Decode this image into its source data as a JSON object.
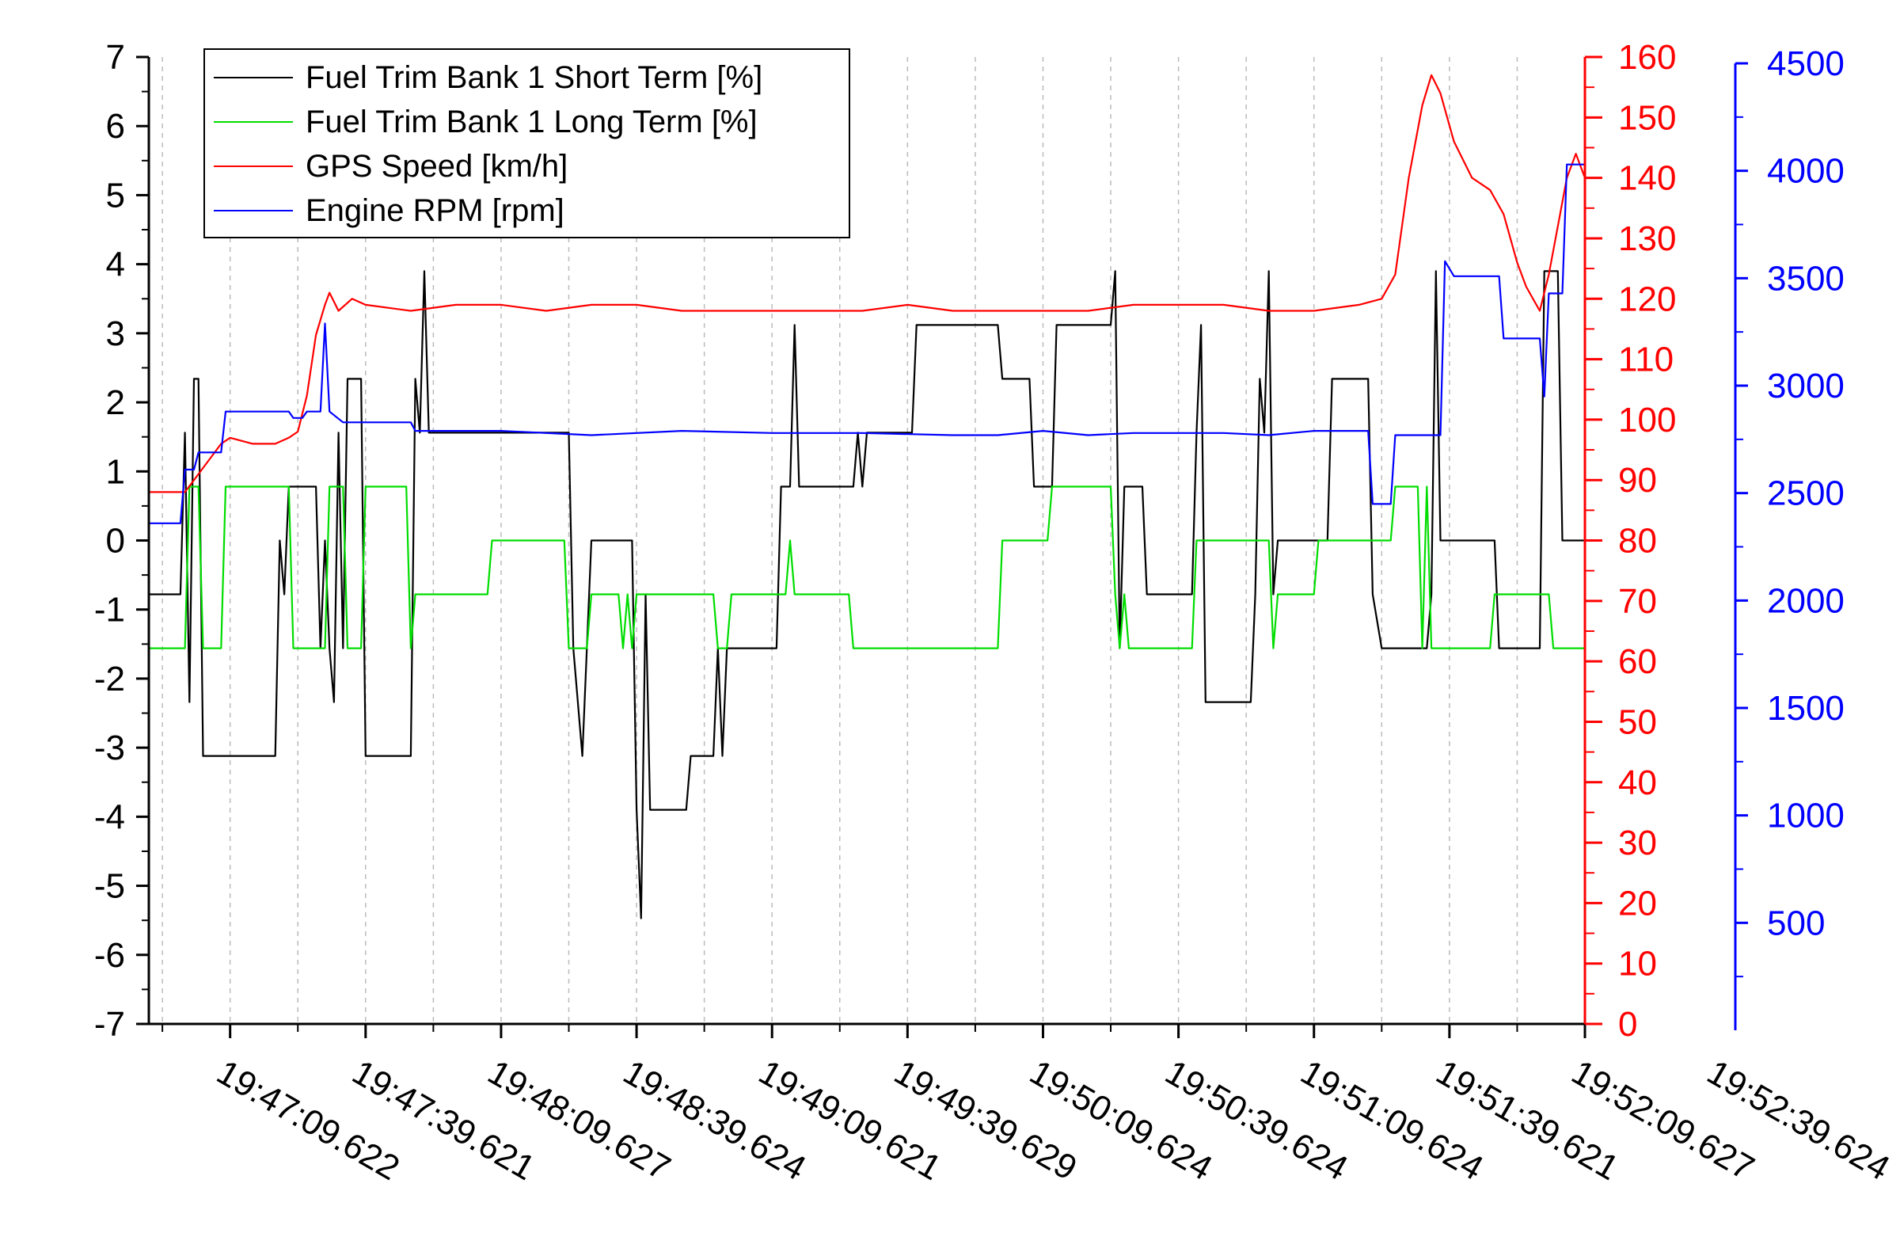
{
  "chart_data": {
    "type": "line",
    "x_unit": "time",
    "x_ticks": [
      "19:47:09.622",
      "19:47:39.621",
      "19:48:09.627",
      "19:48:39.624",
      "19:49:09.621",
      "19:49:39.629",
      "19:50:09.624",
      "19:50:39.624",
      "19:51:09.624",
      "19:51:39.621",
      "19:52:09.627",
      "19:52:39.624"
    ],
    "x_range_seconds_from_first_tick": [
      -18,
      300
    ],
    "grid": "vertical dashed minor",
    "legend_position": "top-left",
    "axes": {
      "left": {
        "ylim": [
          -7,
          7
        ],
        "ticks": [
          7,
          6,
          5,
          4,
          3,
          2,
          1,
          0,
          -1,
          -2,
          -3,
          -4,
          -5,
          -6,
          -7
        ],
        "color": "#000000"
      },
      "right_red": {
        "ylim": [
          0,
          160
        ],
        "ticks": [
          160,
          150,
          140,
          130,
          120,
          110,
          100,
          90,
          80,
          70,
          60,
          50,
          40,
          30,
          20,
          10,
          0
        ],
        "color": "#ff0000"
      },
      "right_blue": {
        "ylim": [
          0,
          4500
        ],
        "ticks": [
          4500,
          4000,
          3500,
          3000,
          2500,
          2000,
          1500,
          1000,
          500
        ],
        "color": "#0000ff"
      }
    },
    "series": [
      {
        "name": "Fuel Trim Bank 1 Short Term [%]",
        "color": "#000000",
        "axis": "left",
        "points": [
          [
            -18,
            -0.78
          ],
          [
            -11,
            -0.78
          ],
          [
            -10,
            1.56
          ],
          [
            -9,
            -2.34
          ],
          [
            -8,
            2.34
          ],
          [
            -7,
            2.34
          ],
          [
            -6,
            -3.12
          ],
          [
            10,
            -3.12
          ],
          [
            11,
            0
          ],
          [
            12,
            -0.78
          ],
          [
            13,
            0.78
          ],
          [
            19,
            0.78
          ],
          [
            20,
            -1.56
          ],
          [
            21,
            0
          ],
          [
            22,
            -1.56
          ],
          [
            23,
            -2.34
          ],
          [
            24,
            1.56
          ],
          [
            25,
            -1.56
          ],
          [
            26,
            2.34
          ],
          [
            29,
            2.34
          ],
          [
            30,
            -3.12
          ],
          [
            40,
            -3.12
          ],
          [
            41,
            2.34
          ],
          [
            42,
            1.56
          ],
          [
            43,
            3.9
          ],
          [
            44,
            1.56
          ],
          [
            75,
            1.56
          ],
          [
            76,
            -1.56
          ],
          [
            78,
            -3.12
          ],
          [
            79,
            -1.56
          ],
          [
            80,
            0
          ],
          [
            89,
            0
          ],
          [
            90,
            -3.9
          ],
          [
            91,
            -5.47
          ],
          [
            92,
            -0.78
          ],
          [
            93,
            -3.9
          ],
          [
            101,
            -3.9
          ],
          [
            102,
            -3.12
          ],
          [
            107,
            -3.12
          ],
          [
            108,
            -1.56
          ],
          [
            109,
            -3.12
          ],
          [
            110,
            -1.56
          ],
          [
            121,
            -1.56
          ],
          [
            122,
            0.78
          ],
          [
            124,
            0.78
          ],
          [
            125,
            3.12
          ],
          [
            126,
            0.78
          ],
          [
            138,
            0.78
          ],
          [
            139,
            1.56
          ],
          [
            140,
            0.78
          ],
          [
            141,
            1.56
          ],
          [
            151,
            1.56
          ],
          [
            152,
            3.12
          ],
          [
            170,
            3.12
          ],
          [
            171,
            2.34
          ],
          [
            177,
            2.34
          ],
          [
            178,
            0.78
          ],
          [
            182,
            0.78
          ],
          [
            183,
            3.12
          ],
          [
            195,
            3.12
          ],
          [
            196,
            3.9
          ],
          [
            197,
            -1.56
          ],
          [
            198,
            0.78
          ],
          [
            202,
            0.78
          ],
          [
            203,
            -0.78
          ],
          [
            213,
            -0.78
          ],
          [
            214,
            1.56
          ],
          [
            215,
            3.12
          ],
          [
            216,
            -2.34
          ],
          [
            226,
            -2.34
          ],
          [
            227,
            -0.78
          ],
          [
            228,
            2.34
          ],
          [
            229,
            1.56
          ],
          [
            230,
            3.9
          ],
          [
            231,
            -0.78
          ],
          [
            232,
            0
          ],
          [
            243,
            0
          ],
          [
            244,
            2.34
          ],
          [
            252,
            2.34
          ],
          [
            253,
            -0.78
          ],
          [
            255,
            -1.56
          ],
          [
            265,
            -1.56
          ],
          [
            266,
            -0.78
          ],
          [
            267,
            3.9
          ],
          [
            268,
            0
          ],
          [
            280,
            0
          ],
          [
            281,
            -1.56
          ],
          [
            290,
            -1.56
          ],
          [
            291,
            3.9
          ],
          [
            294,
            3.9
          ],
          [
            295,
            0
          ],
          [
            300,
            0
          ]
        ]
      },
      {
        "name": "Fuel Trim Bank 1 Long Term [%]",
        "color": "#00dd00",
        "axis": "left",
        "points": [
          [
            -18,
            -1.56
          ],
          [
            -10,
            -1.56
          ],
          [
            -9,
            0.78
          ],
          [
            -7,
            0.78
          ],
          [
            -6,
            -1.56
          ],
          [
            -2,
            -1.56
          ],
          [
            -1,
            0.78
          ],
          [
            13,
            0.78
          ],
          [
            14,
            -1.56
          ],
          [
            21,
            -1.56
          ],
          [
            22,
            0.78
          ],
          [
            25,
            0.78
          ],
          [
            26,
            -1.56
          ],
          [
            29,
            -1.56
          ],
          [
            30,
            0.78
          ],
          [
            39,
            0.78
          ],
          [
            40,
            -1.56
          ],
          [
            41,
            -0.78
          ],
          [
            57,
            -0.78
          ],
          [
            58,
            0
          ],
          [
            74,
            0
          ],
          [
            75,
            -1.56
          ],
          [
            79,
            -1.56
          ],
          [
            80,
            -0.78
          ],
          [
            86,
            -0.78
          ],
          [
            87,
            -1.56
          ],
          [
            88,
            -0.78
          ],
          [
            89,
            -1.56
          ],
          [
            90,
            -0.78
          ],
          [
            107,
            -0.78
          ],
          [
            108,
            -1.56
          ],
          [
            110,
            -1.56
          ],
          [
            111,
            -0.78
          ],
          [
            123,
            -0.78
          ],
          [
            124,
            0
          ],
          [
            125,
            -0.78
          ],
          [
            137,
            -0.78
          ],
          [
            138,
            -1.56
          ],
          [
            170,
            -1.56
          ],
          [
            171,
            0
          ],
          [
            181,
            0
          ],
          [
            182,
            0.78
          ],
          [
            195,
            0.78
          ],
          [
            196,
            -0.78
          ],
          [
            197,
            -1.56
          ],
          [
            198,
            -0.78
          ],
          [
            199,
            -1.56
          ],
          [
            213,
            -1.56
          ],
          [
            214,
            0
          ],
          [
            230,
            0
          ],
          [
            231,
            -1.56
          ],
          [
            232,
            -0.78
          ],
          [
            240,
            -0.78
          ],
          [
            241,
            0
          ],
          [
            257,
            0
          ],
          [
            258,
            0.78
          ],
          [
            263,
            0.78
          ],
          [
            264,
            -1.56
          ],
          [
            265,
            0.78
          ],
          [
            266,
            -1.56
          ],
          [
            279,
            -1.56
          ],
          [
            280,
            -0.78
          ],
          [
            292,
            -0.78
          ],
          [
            293,
            -1.56
          ],
          [
            300,
            -1.56
          ]
        ]
      },
      {
        "name": "GPS Speed [km/h]",
        "color": "#ff0000",
        "axis": "right_red",
        "points": [
          [
            -18,
            88
          ],
          [
            -10,
            88
          ],
          [
            -8,
            90
          ],
          [
            -6,
            92
          ],
          [
            -2,
            96
          ],
          [
            0,
            97
          ],
          [
            5,
            96
          ],
          [
            10,
            96
          ],
          [
            13,
            97
          ],
          [
            15,
            98
          ],
          [
            17,
            104
          ],
          [
            19,
            114
          ],
          [
            21,
            119
          ],
          [
            22,
            121
          ],
          [
            24,
            118
          ],
          [
            27,
            120
          ],
          [
            30,
            119
          ],
          [
            40,
            118
          ],
          [
            50,
            119
          ],
          [
            60,
            119
          ],
          [
            70,
            118
          ],
          [
            80,
            119
          ],
          [
            90,
            119
          ],
          [
            100,
            118
          ],
          [
            110,
            118
          ],
          [
            120,
            118
          ],
          [
            130,
            118
          ],
          [
            140,
            118
          ],
          [
            150,
            119
          ],
          [
            160,
            118
          ],
          [
            170,
            118
          ],
          [
            180,
            118
          ],
          [
            190,
            118
          ],
          [
            200,
            119
          ],
          [
            210,
            119
          ],
          [
            220,
            119
          ],
          [
            230,
            118
          ],
          [
            240,
            118
          ],
          [
            250,
            119
          ],
          [
            255,
            120
          ],
          [
            258,
            124
          ],
          [
            261,
            140
          ],
          [
            264,
            152
          ],
          [
            266,
            157
          ],
          [
            268,
            154
          ],
          [
            271,
            146
          ],
          [
            275,
            140
          ],
          [
            279,
            138
          ],
          [
            282,
            134
          ],
          [
            285,
            126
          ],
          [
            287,
            122
          ],
          [
            290,
            118
          ],
          [
            292,
            124
          ],
          [
            294,
            132
          ],
          [
            296,
            140
          ],
          [
            298,
            144
          ],
          [
            300,
            140
          ]
        ]
      },
      {
        "name": "Engine RPM [rpm]",
        "color": "#0000ff",
        "axis": "right_blue",
        "points": [
          [
            -18,
            2330
          ],
          [
            -11,
            2330
          ],
          [
            -10,
            2580
          ],
          [
            -8,
            2580
          ],
          [
            -7,
            2660
          ],
          [
            -2,
            2660
          ],
          [
            -1,
            2850
          ],
          [
            13,
            2850
          ],
          [
            14,
            2820
          ],
          [
            16,
            2820
          ],
          [
            17,
            2850
          ],
          [
            20,
            2850
          ],
          [
            21,
            3260
          ],
          [
            22,
            2850
          ],
          [
            25,
            2800
          ],
          [
            40,
            2800
          ],
          [
            41,
            2760
          ],
          [
            60,
            2760
          ],
          [
            80,
            2740
          ],
          [
            100,
            2760
          ],
          [
            120,
            2750
          ],
          [
            140,
            2750
          ],
          [
            160,
            2740
          ],
          [
            170,
            2740
          ],
          [
            180,
            2760
          ],
          [
            190,
            2740
          ],
          [
            200,
            2750
          ],
          [
            220,
            2750
          ],
          [
            230,
            2740
          ],
          [
            240,
            2760
          ],
          [
            252,
            2760
          ],
          [
            253,
            2420
          ],
          [
            257,
            2420
          ],
          [
            258,
            2740
          ],
          [
            268,
            2740
          ],
          [
            269,
            3550
          ],
          [
            271,
            3480
          ],
          [
            272,
            3480
          ],
          [
            281,
            3480
          ],
          [
            282,
            3190
          ],
          [
            290,
            3190
          ],
          [
            291,
            2920
          ],
          [
            292,
            3400
          ],
          [
            295,
            3400
          ],
          [
            296,
            4000
          ],
          [
            300,
            4000
          ]
        ]
      }
    ]
  }
}
